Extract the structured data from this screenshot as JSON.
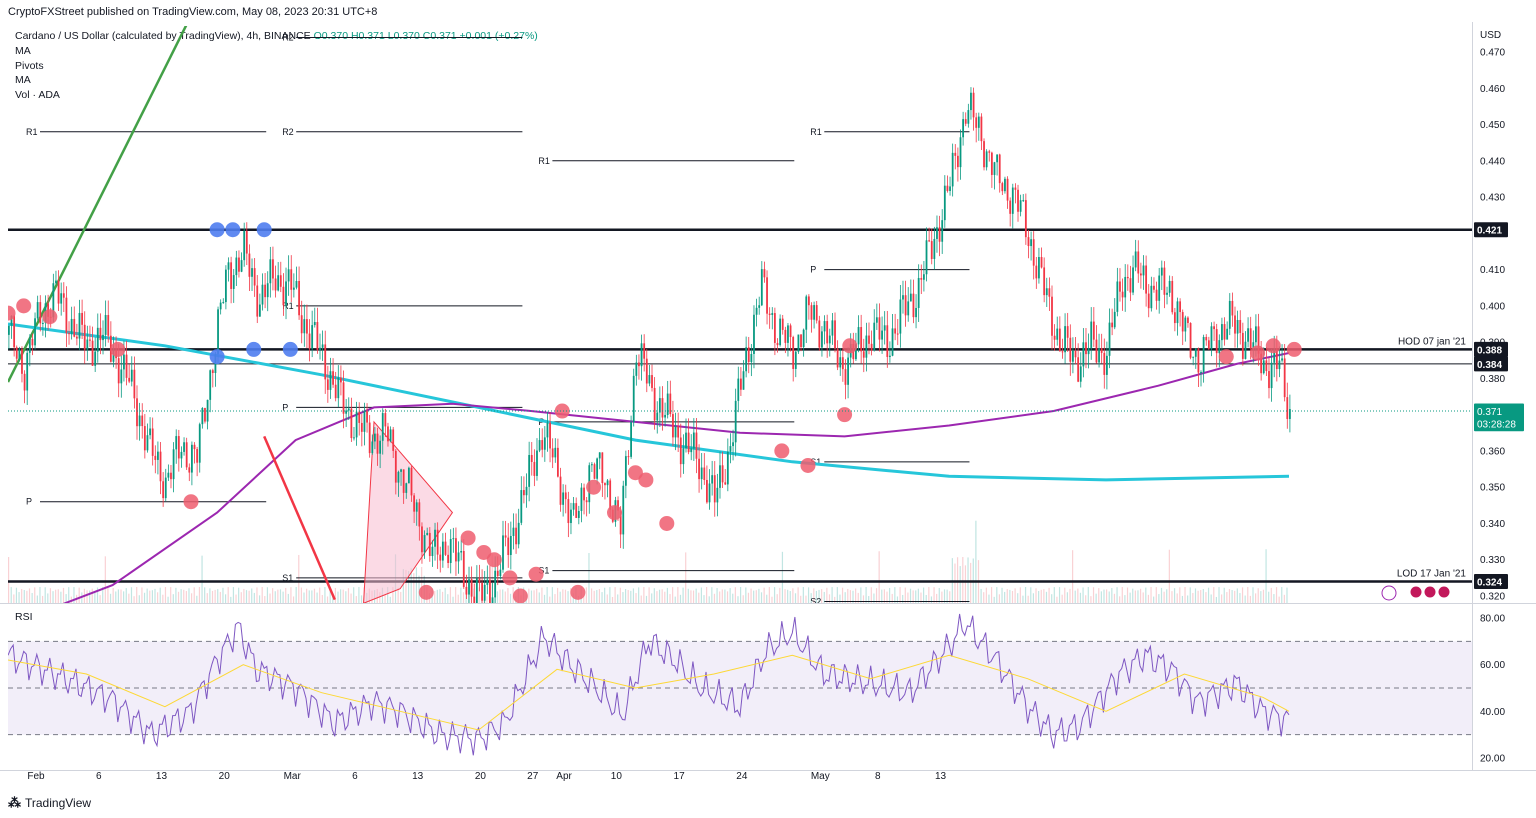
{
  "header": {
    "publisher": "CryptoFXStreet published on TradingView.com, May 08, 2023 20:31 UTC+8"
  },
  "legend": {
    "symbol": "Cardano / US Dollar (calculated by TradingView), 4h, BINANCE",
    "ohlc": "O0.370  H0.371  L0.370  C0.371  +0.001 (+0.27%)",
    "indicators": [
      "MA",
      "Pivots",
      "MA",
      "Vol · ADA"
    ]
  },
  "footer": {
    "logo_text": "TradingView"
  },
  "colors": {
    "up": "#089981",
    "down": "#f23645",
    "ma_fast": "#9c27b0",
    "ma_slow": "#26c6da",
    "trend_green": "#43a047",
    "rsi": "#7e57c2",
    "rsi_ma": "#fdd835",
    "marker_red": "#ef5d6e",
    "marker_blue": "#4f7df0",
    "triangle_fill": "#f8bbd0"
  },
  "chart_data": [
    {
      "type": "candlestick",
      "title": "Cardano / US Dollar (calculated by TradingView), 4h, BINANCE",
      "currency": "USD",
      "ylim": [
        0.318,
        0.475
      ],
      "y_ticks": [
        "0.470",
        "0.460",
        "0.450",
        "0.440",
        "0.430",
        "0.420",
        "0.410",
        "0.400",
        "0.390",
        "0.380",
        "0.370",
        "0.360",
        "0.350",
        "0.340",
        "0.330",
        "0.320"
      ],
      "x_ticks": [
        "Feb",
        "6",
        "13",
        "20",
        "Mar",
        "6",
        "13",
        "20",
        "27",
        "Apr",
        "10",
        "17",
        "24",
        "May",
        "8",
        "13"
      ],
      "price_tags": [
        {
          "text": "0.421",
          "value": 0.421,
          "style": "dark"
        },
        {
          "text": "0.388",
          "value": 0.388,
          "style": "dark"
        },
        {
          "text": "0.384",
          "value": 0.384,
          "style": "dark"
        },
        {
          "text": "0.371",
          "value": 0.371,
          "style": "current"
        },
        {
          "text": "03:28:28",
          "value": 0.3675,
          "style": "current"
        },
        {
          "text": "0.324",
          "value": 0.324,
          "style": "dark"
        }
      ],
      "horizontal_levels": [
        {
          "value": 0.421,
          "label": ""
        },
        {
          "value": 0.388,
          "label": "HOD 07 jan '21"
        },
        {
          "value": 0.384,
          "label": ""
        },
        {
          "value": 0.324,
          "label": "LOD 17 Jan '21"
        }
      ],
      "pivot_labels": [
        "R1",
        "P",
        "R2",
        "R1",
        "P",
        "S1",
        "R2",
        "R1",
        "P",
        "S1",
        "R1",
        "P",
        "S1",
        "S2"
      ],
      "pivot_levels": [
        {
          "label": "R1",
          "value": 0.448,
          "start": "Feb",
          "end": "Mar"
        },
        {
          "label": "P",
          "value": 0.346,
          "start": "Feb",
          "end": "Mar"
        },
        {
          "label": "R2",
          "value": 0.448,
          "start": "Mar",
          "end": "Apr"
        },
        {
          "label": "R1",
          "value": 0.4,
          "start": "Mar",
          "end": "Apr"
        },
        {
          "label": "P",
          "value": 0.372,
          "start": "Mar",
          "end": "Apr"
        },
        {
          "label": "S1",
          "value": 0.325,
          "start": "Mar",
          "end": "Apr"
        },
        {
          "label": "R2",
          "value": 0.474,
          "start": "Mar",
          "end": "Apr"
        },
        {
          "label": "R1",
          "value": 0.44,
          "start": "Apr",
          "end": "May"
        },
        {
          "label": "P",
          "value": 0.368,
          "start": "Apr",
          "end": "May"
        },
        {
          "label": "S1",
          "value": 0.327,
          "start": "Apr",
          "end": "May"
        },
        {
          "label": "R1",
          "value": 0.448,
          "start": "May",
          "end": "13"
        },
        {
          "label": "P",
          "value": 0.41,
          "start": "May",
          "end": "13"
        },
        {
          "label": "S1",
          "value": 0.357,
          "start": "May",
          "end": "13"
        },
        {
          "label": "S2",
          "value": 0.3185,
          "start": "May",
          "end": "13"
        }
      ],
      "close_path": [
        [
          0,
          0.392
        ],
        [
          6,
          0.383
        ],
        [
          12,
          0.398
        ],
        [
          18,
          0.403
        ],
        [
          24,
          0.395
        ],
        [
          30,
          0.389
        ],
        [
          36,
          0.392
        ],
        [
          42,
          0.385
        ],
        [
          48,
          0.375
        ],
        [
          54,
          0.36
        ],
        [
          60,
          0.352
        ],
        [
          66,
          0.361
        ],
        [
          72,
          0.358
        ],
        [
          78,
          0.386
        ],
        [
          84,
          0.41
        ],
        [
          90,
          0.414
        ],
        [
          96,
          0.402
        ],
        [
          102,
          0.408
        ],
        [
          108,
          0.405
        ],
        [
          114,
          0.394
        ],
        [
          120,
          0.386
        ],
        [
          126,
          0.375
        ],
        [
          132,
          0.368
        ],
        [
          138,
          0.364
        ],
        [
          144,
          0.365
        ],
        [
          150,
          0.354
        ],
        [
          156,
          0.343
        ],
        [
          162,
          0.331
        ],
        [
          168,
          0.335
        ],
        [
          174,
          0.326
        ],
        [
          180,
          0.319
        ],
        [
          186,
          0.325
        ],
        [
          192,
          0.336
        ],
        [
          198,
          0.35
        ],
        [
          204,
          0.366
        ],
        [
          210,
          0.354
        ],
        [
          216,
          0.339
        ],
        [
          222,
          0.355
        ],
        [
          228,
          0.353
        ],
        [
          234,
          0.338
        ],
        [
          240,
          0.388
        ],
        [
          246,
          0.376
        ],
        [
          252,
          0.369
        ],
        [
          258,
          0.362
        ],
        [
          264,
          0.357
        ],
        [
          270,
          0.346
        ],
        [
          276,
          0.362
        ],
        [
          282,
          0.386
        ],
        [
          288,
          0.405
        ],
        [
          294,
          0.393
        ],
        [
          300,
          0.388
        ],
        [
          306,
          0.398
        ],
        [
          312,
          0.394
        ],
        [
          318,
          0.384
        ],
        [
          324,
          0.387
        ],
        [
          330,
          0.393
        ],
        [
          336,
          0.39
        ],
        [
          342,
          0.398
        ],
        [
          348,
          0.405
        ],
        [
          354,
          0.419
        ],
        [
          360,
          0.433
        ],
        [
          366,
          0.455
        ],
        [
          372,
          0.447
        ],
        [
          378,
          0.435
        ],
        [
          384,
          0.431
        ],
        [
          390,
          0.42
        ],
        [
          396,
          0.404
        ],
        [
          402,
          0.39
        ],
        [
          408,
          0.385
        ],
        [
          414,
          0.389
        ],
        [
          420,
          0.387
        ],
        [
          426,
          0.408
        ],
        [
          432,
          0.409
        ],
        [
          438,
          0.404
        ],
        [
          444,
          0.405
        ],
        [
          450,
          0.392
        ],
        [
          456,
          0.385
        ],
        [
          462,
          0.393
        ],
        [
          468,
          0.395
        ],
        [
          474,
          0.391
        ],
        [
          480,
          0.384
        ],
        [
          486,
          0.383
        ],
        [
          490,
          0.371
        ]
      ],
      "ma_slow": [
        [
          0,
          0.395
        ],
        [
          60,
          0.389
        ],
        [
          120,
          0.381
        ],
        [
          180,
          0.372
        ],
        [
          240,
          0.363
        ],
        [
          300,
          0.357
        ],
        [
          360,
          0.353
        ],
        [
          420,
          0.352
        ],
        [
          490,
          0.353
        ]
      ],
      "ma_fast": [
        [
          0,
          0.312
        ],
        [
          40,
          0.323
        ],
        [
          80,
          0.343
        ],
        [
          110,
          0.363
        ],
        [
          140,
          0.372
        ],
        [
          170,
          0.373
        ],
        [
          200,
          0.371
        ],
        [
          240,
          0.368
        ],
        [
          280,
          0.365
        ],
        [
          320,
          0.364
        ],
        [
          360,
          0.367
        ],
        [
          400,
          0.371
        ],
        [
          440,
          0.378
        ],
        [
          470,
          0.384
        ],
        [
          490,
          0.387
        ]
      ],
      "markers_red": [
        [
          0,
          0.398
        ],
        [
          6,
          0.4
        ],
        [
          16,
          0.397
        ],
        [
          42,
          0.388
        ],
        [
          70,
          0.346
        ],
        [
          160,
          0.321
        ],
        [
          176,
          0.336
        ],
        [
          182,
          0.332
        ],
        [
          186,
          0.33
        ],
        [
          192,
          0.325
        ],
        [
          196,
          0.32
        ],
        [
          202,
          0.326
        ],
        [
          212,
          0.371
        ],
        [
          218,
          0.321
        ],
        [
          224,
          0.35
        ],
        [
          232,
          0.343
        ],
        [
          240,
          0.354
        ],
        [
          244,
          0.352
        ],
        [
          252,
          0.34
        ],
        [
          296,
          0.36
        ],
        [
          306,
          0.356
        ],
        [
          320,
          0.37
        ],
        [
          492,
          0.388
        ],
        [
          322,
          0.389
        ],
        [
          466,
          0.386
        ],
        [
          478,
          0.387
        ],
        [
          484,
          0.389
        ]
      ],
      "markers_blue": [
        [
          80,
          0.421
        ],
        [
          86,
          0.421
        ],
        [
          98,
          0.421
        ],
        [
          80,
          0.386
        ],
        [
          94,
          0.388
        ],
        [
          108,
          0.388
        ]
      ]
    },
    {
      "type": "line",
      "title": "RSI",
      "ylim": [
        15,
        82
      ],
      "y_ticks": [
        "80.00",
        "60.00",
        "40.00",
        "20.00"
      ],
      "band": [
        30,
        70
      ],
      "mid": 50,
      "series": [
        {
          "role": "rsi",
          "values": [
            [
              0,
              64
            ],
            [
              20,
              55
            ],
            [
              40,
              45
            ],
            [
              55,
              30
            ],
            [
              70,
              40
            ],
            [
              80,
              62
            ],
            [
              88,
              76
            ],
            [
              95,
              58
            ],
            [
              110,
              50
            ],
            [
              125,
              35
            ],
            [
              140,
              44
            ],
            [
              150,
              40
            ],
            [
              165,
              30
            ],
            [
              180,
              28
            ],
            [
              190,
              35
            ],
            [
              205,
              72
            ],
            [
              215,
              60
            ],
            [
              225,
              50
            ],
            [
              235,
              38
            ],
            [
              245,
              70
            ],
            [
              255,
              62
            ],
            [
              265,
              50
            ],
            [
              280,
              42
            ],
            [
              290,
              66
            ],
            [
              300,
              74
            ],
            [
              312,
              56
            ],
            [
              330,
              52
            ],
            [
              345,
              48
            ],
            [
              360,
              68
            ],
            [
              366,
              78
            ],
            [
              378,
              62
            ],
            [
              390,
              42
            ],
            [
              400,
              30
            ],
            [
              410,
              34
            ],
            [
              425,
              56
            ],
            [
              435,
              64
            ],
            [
              445,
              58
            ],
            [
              455,
              44
            ],
            [
              470,
              52
            ],
            [
              480,
              40
            ],
            [
              490,
              36
            ]
          ]
        },
        {
          "role": "rsi_ma",
          "values": [
            [
              0,
              62
            ],
            [
              30,
              56
            ],
            [
              60,
              42
            ],
            [
              90,
              60
            ],
            [
              120,
              48
            ],
            [
              150,
              40
            ],
            [
              180,
              32
            ],
            [
              210,
              58
            ],
            [
              240,
              50
            ],
            [
              270,
              56
            ],
            [
              300,
              64
            ],
            [
              330,
              54
            ],
            [
              360,
              64
            ],
            [
              390,
              54
            ],
            [
              420,
              40
            ],
            [
              450,
              56
            ],
            [
              480,
              46
            ],
            [
              490,
              40
            ]
          ]
        }
      ]
    }
  ]
}
